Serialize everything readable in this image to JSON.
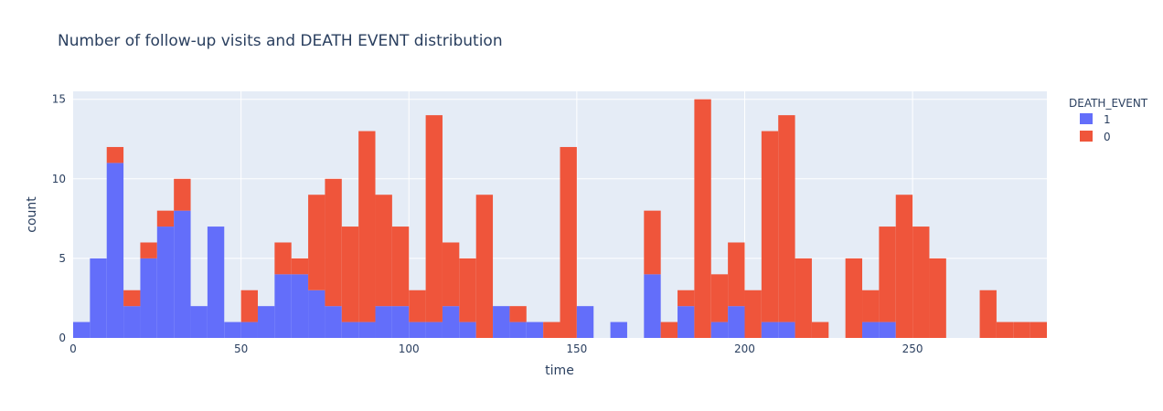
{
  "chart_data": {
    "type": "bar",
    "title": "Number of follow-up visits and DEATH EVENT distribution",
    "xlabel": "time",
    "ylabel": "count",
    "xlim": [
      0,
      290
    ],
    "ylim": [
      0,
      15.5
    ],
    "bin_width": 5,
    "x_ticks": [
      0,
      50,
      100,
      150,
      200,
      250
    ],
    "y_ticks": [
      0,
      5,
      10,
      15
    ],
    "grid": true,
    "legend": {
      "title": "DEATH_EVENT",
      "placement": "top-right outside"
    },
    "categories": [
      0,
      5,
      10,
      15,
      20,
      25,
      30,
      35,
      40,
      45,
      50,
      55,
      60,
      65,
      70,
      75,
      80,
      85,
      90,
      95,
      100,
      105,
      110,
      115,
      120,
      125,
      130,
      135,
      140,
      145,
      150,
      155,
      160,
      165,
      170,
      175,
      180,
      185,
      190,
      195,
      200,
      205,
      210,
      215,
      220,
      225,
      230,
      235,
      240,
      245,
      250,
      255,
      260,
      265,
      270,
      275,
      280,
      285
    ],
    "series": [
      {
        "name": "1",
        "color": "#636efa",
        "values": [
          1,
          5,
          11,
          2,
          5,
          7,
          8,
          2,
          7,
          1,
          1,
          2,
          4,
          4,
          3,
          2,
          1,
          1,
          2,
          2,
          1,
          1,
          2,
          1,
          0,
          2,
          1,
          1,
          0,
          0,
          2,
          0,
          1,
          0,
          4,
          0,
          2,
          0,
          1,
          2,
          0,
          1,
          1,
          0,
          0,
          0,
          0,
          1,
          1,
          0,
          0,
          0,
          0,
          0,
          0,
          0,
          0,
          0
        ]
      },
      {
        "name": "0",
        "color": "#ef553b",
        "values": [
          0,
          0,
          1,
          1,
          1,
          1,
          2,
          0,
          0,
          0,
          2,
          0,
          2,
          1,
          6,
          8,
          6,
          12,
          7,
          5,
          2,
          13,
          4,
          4,
          9,
          0,
          1,
          0,
          1,
          12,
          0,
          0,
          0,
          0,
          4,
          1,
          1,
          15,
          3,
          4,
          3,
          12,
          13,
          5,
          1,
          0,
          5,
          2,
          6,
          9,
          7,
          5,
          0,
          0,
          3,
          1,
          1,
          1
        ]
      }
    ]
  }
}
